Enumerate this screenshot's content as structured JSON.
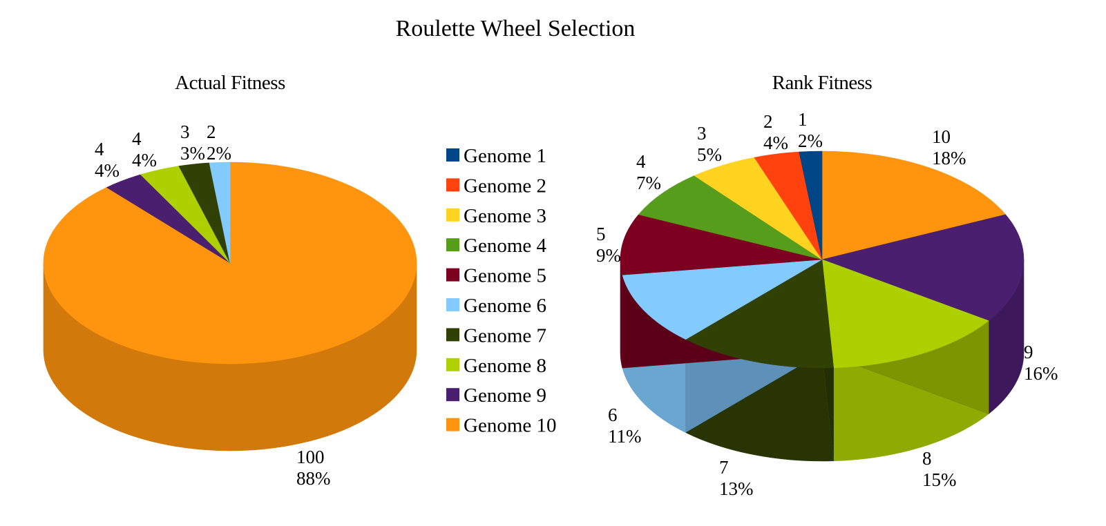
{
  "title": "Roulette Wheel Selection",
  "legend": [
    "Genome 1",
    "Genome 2",
    "Genome 3",
    "Genome 4",
    "Genome 5",
    "Genome 6",
    "Genome 7",
    "Genome 8",
    "Genome 9",
    "Genome 10"
  ],
  "colors": [
    "#004586",
    "#ff420e",
    "#ffd320",
    "#579d1c",
    "#7e0021",
    "#83caff",
    "#314004",
    "#aecf00",
    "#4b1f6f",
    "#ff950e"
  ],
  "chart_data": [
    {
      "type": "pie",
      "style": "3d",
      "title": "Actual Fitness",
      "slices": [
        {
          "name": "Genome 1",
          "value": 0,
          "percent": "0%"
        },
        {
          "name": "Genome 2",
          "value": 0,
          "percent": "0%"
        },
        {
          "name": "Genome 3",
          "value": 0,
          "percent": "0%"
        },
        {
          "name": "Genome 4",
          "value": 0,
          "percent": "0%"
        },
        {
          "name": "Genome 5",
          "value": 0,
          "percent": "0%"
        },
        {
          "name": "Genome 6",
          "value": 2,
          "percent": "2%"
        },
        {
          "name": "Genome 7",
          "value": 3,
          "percent": "3%"
        },
        {
          "name": "Genome 8",
          "value": 4,
          "percent": "4%"
        },
        {
          "name": "Genome 9",
          "value": 4,
          "percent": "4%"
        },
        {
          "name": "Genome 10",
          "value": 100,
          "percent": "88%"
        }
      ]
    },
    {
      "type": "pie",
      "style": "3d",
      "title": "Rank Fitness",
      "slices": [
        {
          "name": "Genome 1",
          "value": 1,
          "percent": "2%"
        },
        {
          "name": "Genome 2",
          "value": 2,
          "percent": "4%"
        },
        {
          "name": "Genome 3",
          "value": 3,
          "percent": "5%"
        },
        {
          "name": "Genome 4",
          "value": 4,
          "percent": "7%"
        },
        {
          "name": "Genome 5",
          "value": 5,
          "percent": "9%"
        },
        {
          "name": "Genome 6",
          "value": 6,
          "percent": "11%"
        },
        {
          "name": "Genome 7",
          "value": 7,
          "percent": "13%"
        },
        {
          "name": "Genome 8",
          "value": 8,
          "percent": "15%"
        },
        {
          "name": "Genome 9",
          "value": 9,
          "percent": "16%"
        },
        {
          "name": "Genome 10",
          "value": 10,
          "percent": "18%"
        }
      ]
    }
  ]
}
